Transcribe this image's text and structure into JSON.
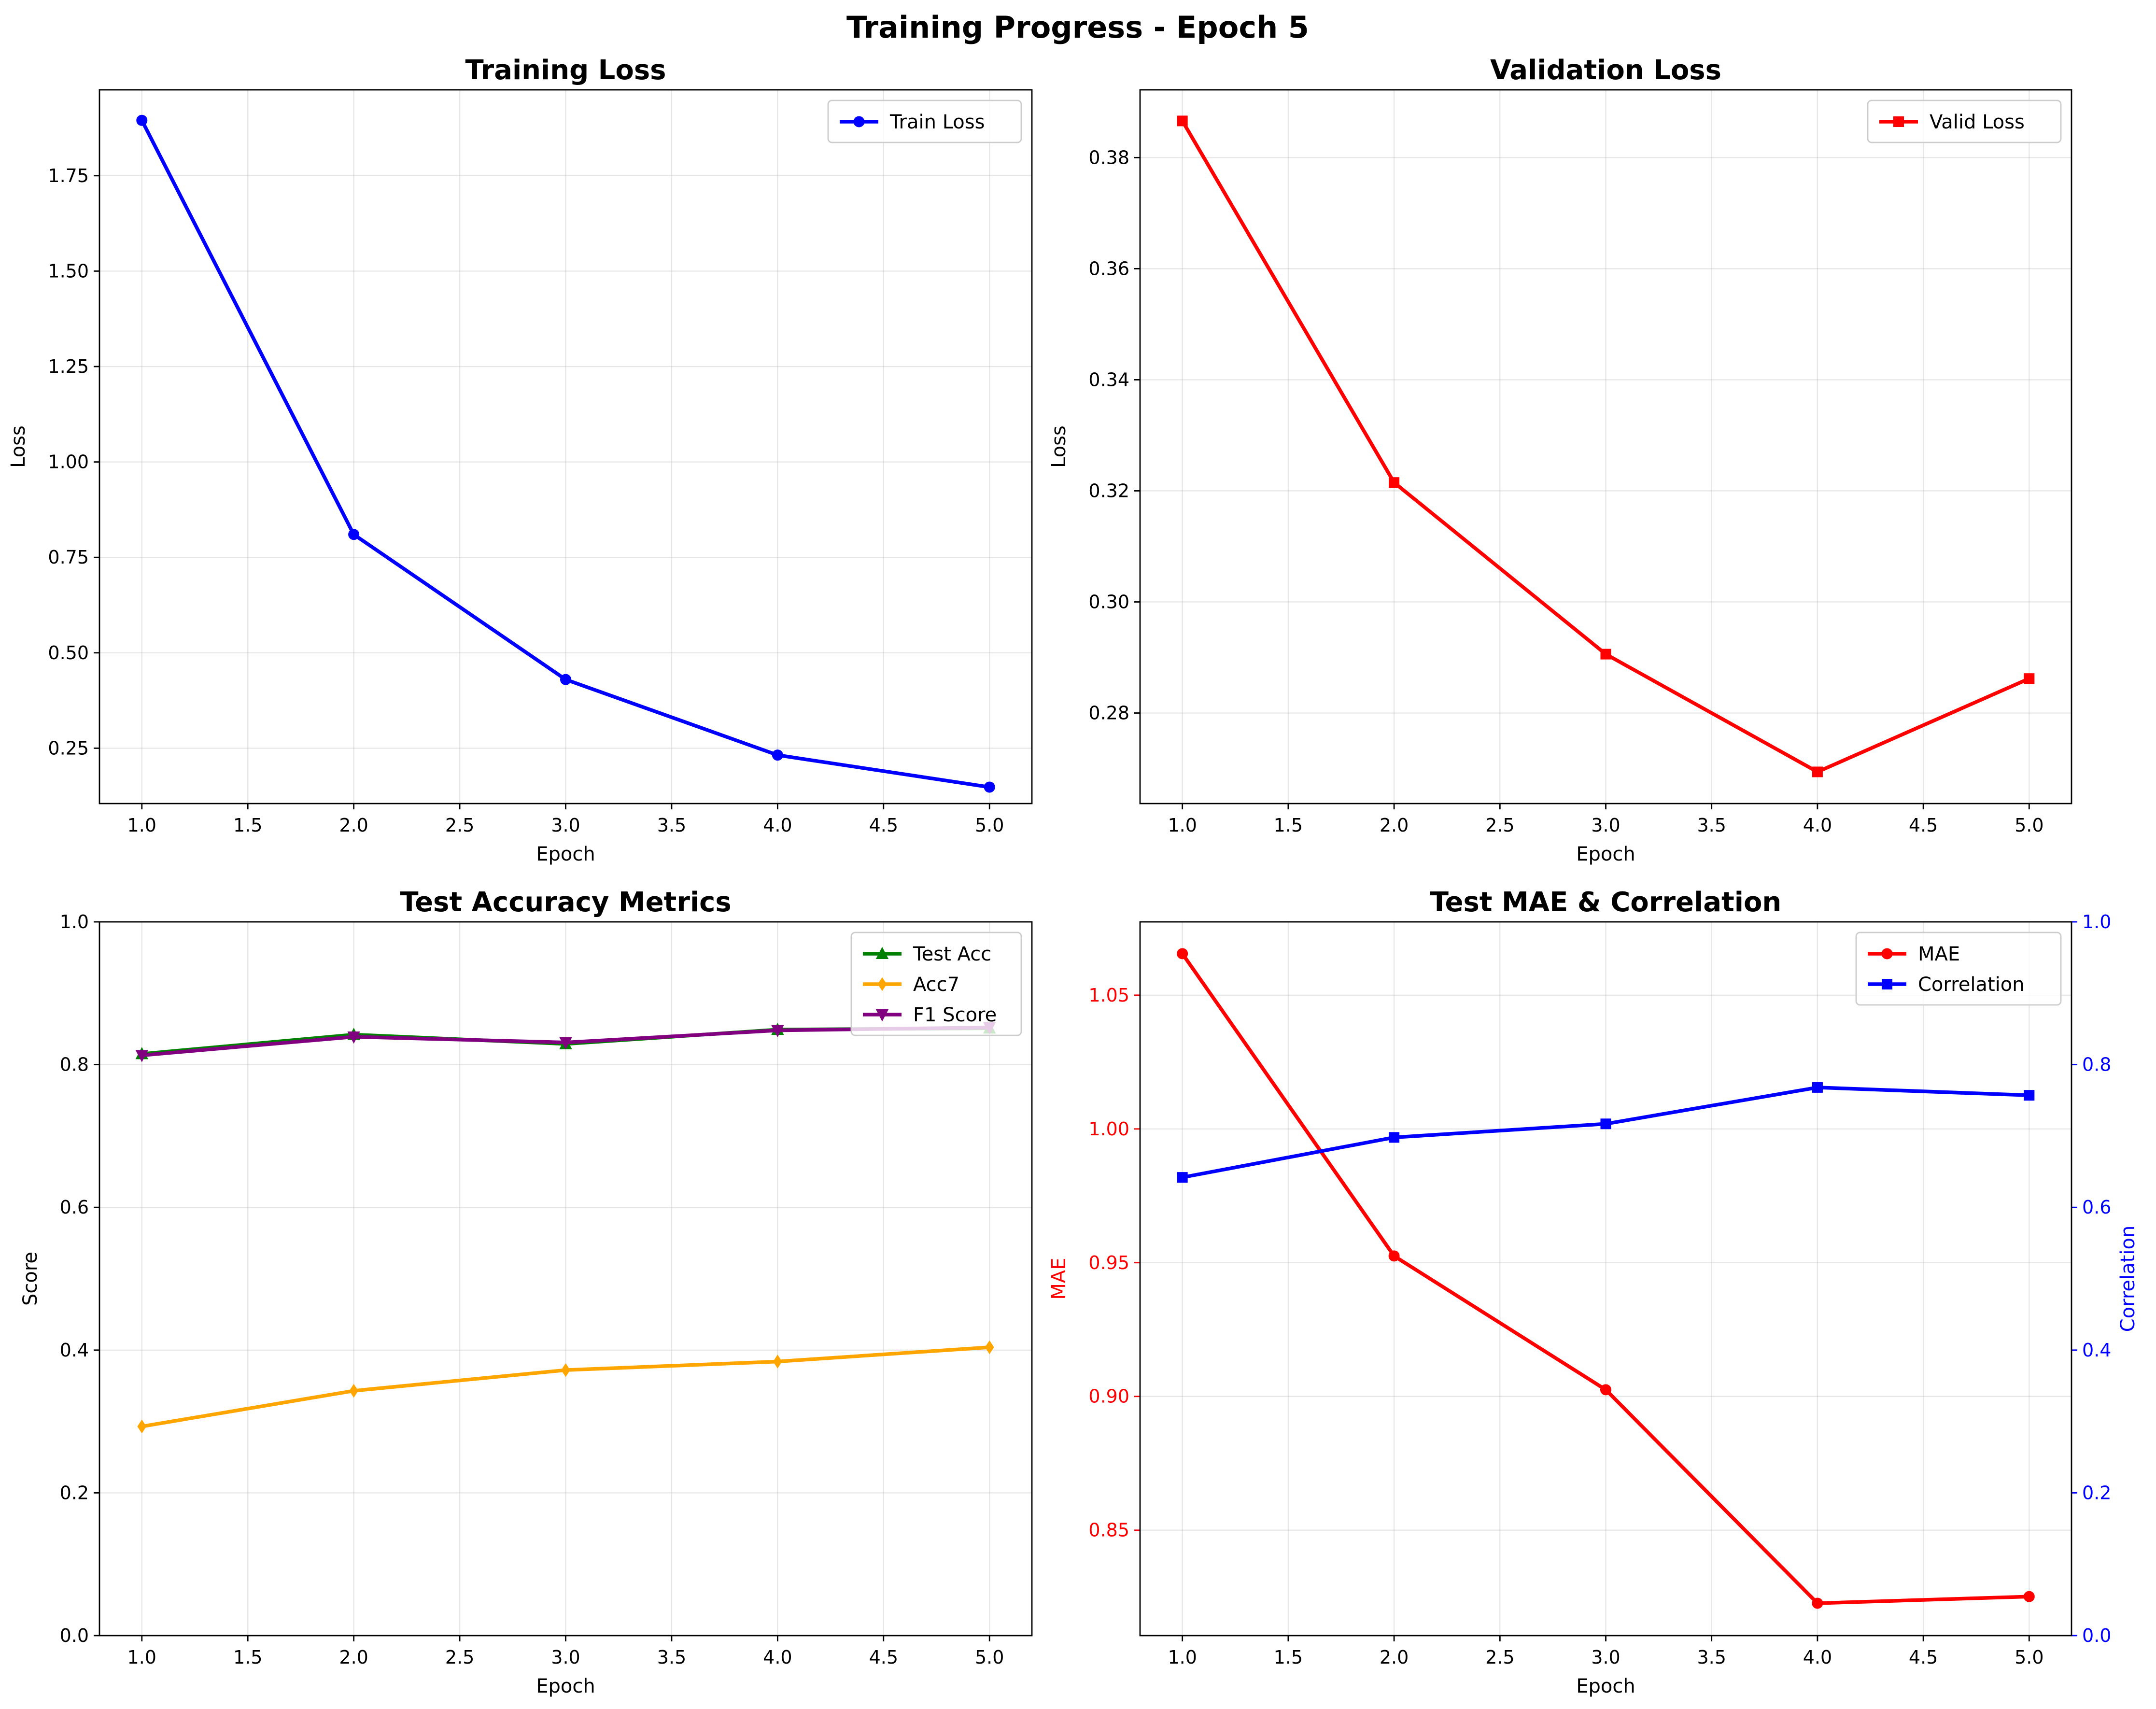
{
  "figure_title": "Training Progress - Epoch 5",
  "chart_data": [
    {
      "type": "line",
      "title": "Training Loss",
      "xlabel": "Epoch",
      "ylabel": "Loss",
      "x": [
        1,
        2,
        3,
        4,
        5
      ],
      "xlim": [
        0.8,
        5.2
      ],
      "ylim": [
        0.105,
        1.975
      ],
      "xticks": [
        "1.0",
        "1.5",
        "2.0",
        "2.5",
        "3.0",
        "3.5",
        "4.0",
        "4.5",
        "5.0"
      ],
      "yticks": [
        "0.25",
        "0.50",
        "0.75",
        "1.00",
        "1.25",
        "1.50",
        "1.75"
      ],
      "grid": true,
      "legend_position": "upper-right",
      "series": [
        {
          "name": "Train Loss",
          "color": "#0000ff",
          "marker": "circle",
          "values": [
            1.895,
            0.81,
            0.43,
            0.232,
            0.148
          ]
        }
      ]
    },
    {
      "type": "line",
      "title": "Validation Loss",
      "xlabel": "Epoch",
      "ylabel": "Loss",
      "x": [
        1,
        2,
        3,
        4,
        5
      ],
      "xlim": [
        0.8,
        5.2
      ],
      "ylim": [
        0.2637,
        0.3922
      ],
      "xticks": [
        "1.0",
        "1.5",
        "2.0",
        "2.5",
        "3.0",
        "3.5",
        "4.0",
        "4.5",
        "5.0"
      ],
      "yticks": [
        "0.28",
        "0.30",
        "0.32",
        "0.34",
        "0.36",
        "0.38"
      ],
      "grid": true,
      "legend_position": "upper-right",
      "series": [
        {
          "name": "Valid Loss",
          "color": "#ff0000",
          "marker": "square",
          "values": [
            0.3866,
            0.3215,
            0.2906,
            0.2694,
            0.2862
          ]
        }
      ]
    },
    {
      "type": "line",
      "title": "Test Accuracy Metrics",
      "xlabel": "Epoch",
      "ylabel": "Score",
      "x": [
        1,
        2,
        3,
        4,
        5
      ],
      "xlim": [
        0.8,
        5.2
      ],
      "ylim": [
        0,
        1
      ],
      "xticks": [
        "1.0",
        "1.5",
        "2.0",
        "2.5",
        "3.0",
        "3.5",
        "4.0",
        "4.5",
        "5.0"
      ],
      "yticks": [
        "0.0",
        "0.2",
        "0.4",
        "0.6",
        "0.8",
        "1.0"
      ],
      "grid": true,
      "legend_position": "upper-right",
      "series": [
        {
          "name": "Test Acc",
          "color": "#008000",
          "marker": "triangle-up",
          "values": [
            0.815,
            0.842,
            0.829,
            0.849,
            0.851
          ]
        },
        {
          "name": "Acc7",
          "color": "#ffa500",
          "marker": "diamond",
          "values": [
            0.293,
            0.343,
            0.372,
            0.384,
            0.404
          ]
        },
        {
          "name": "F1 Score",
          "color": "#800080",
          "marker": "triangle-down",
          "values": [
            0.813,
            0.839,
            0.831,
            0.848,
            0.852
          ]
        }
      ]
    },
    {
      "type": "line",
      "title": "Test MAE & Correlation",
      "xlabel": "Epoch",
      "ylabel": "MAE",
      "ylabel_right": "Correlation",
      "x": [
        1,
        2,
        3,
        4,
        5
      ],
      "xlim": [
        0.8,
        5.2
      ],
      "ylim": [
        0.8106,
        1.0774
      ],
      "ylim_right": [
        0,
        1
      ],
      "xticks": [
        "1.0",
        "1.5",
        "2.0",
        "2.5",
        "3.0",
        "3.5",
        "4.0",
        "4.5",
        "5.0"
      ],
      "yticks": [
        "0.85",
        "0.90",
        "0.95",
        "1.00",
        "1.05"
      ],
      "yticks_right": [
        "0.0",
        "0.2",
        "0.4",
        "0.6",
        "0.8",
        "1.0"
      ],
      "grid": true,
      "legend_position": "upper-right",
      "left_axis_color": "#ff0000",
      "right_axis_color": "#0000ff",
      "series": [
        {
          "name": "MAE",
          "axis": "left",
          "color": "#ff0000",
          "marker": "circle",
          "values": [
            1.0655,
            0.9525,
            0.9025,
            0.8227,
            0.8252
          ]
        },
        {
          "name": "Correlation",
          "axis": "right",
          "color": "#0000ff",
          "marker": "square",
          "values": [
            0.642,
            0.698,
            0.717,
            0.768,
            0.757
          ]
        }
      ]
    }
  ]
}
